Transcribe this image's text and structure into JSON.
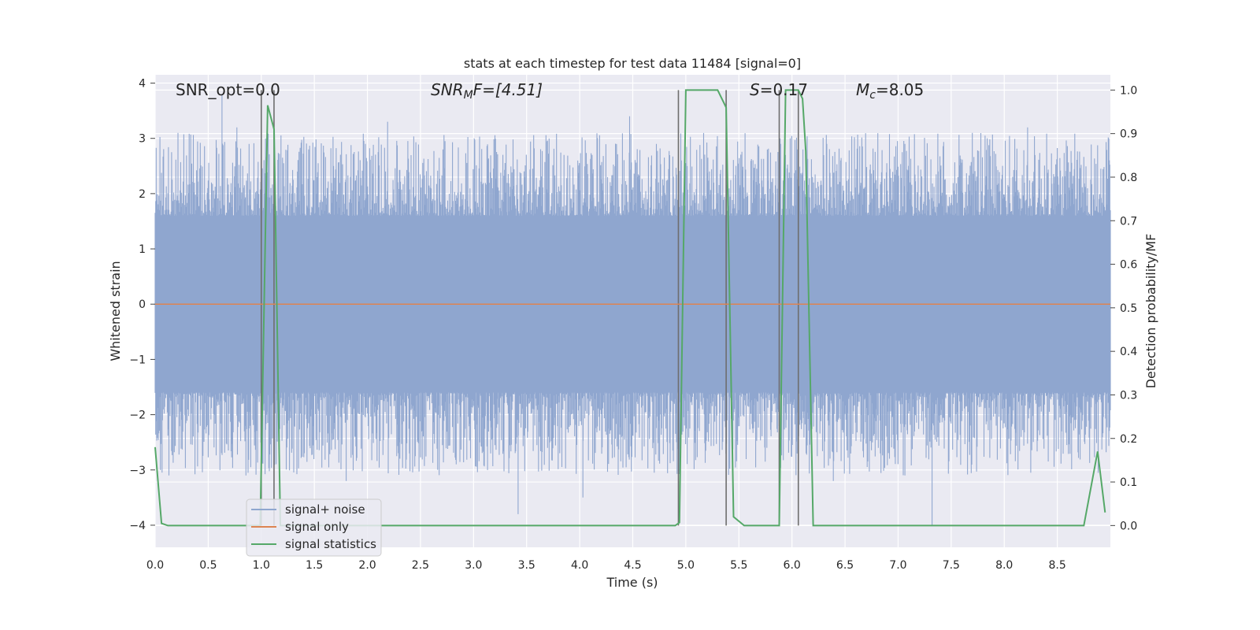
{
  "chart_data": {
    "type": "line",
    "title": "stats at each timestep for test data 11484 [signal=0]",
    "xlabel": "Time (s)",
    "ylabel": "Whitened strain",
    "y2label": "Detection probability/MF",
    "xlim": [
      0,
      9
    ],
    "ylim": [
      -4.4,
      4.15
    ],
    "y2lim": [
      -0.05,
      1.035
    ],
    "xticks": [
      "0.0",
      "0.5",
      "1.0",
      "1.5",
      "2.0",
      "2.5",
      "3.0",
      "3.5",
      "4.0",
      "4.5",
      "5.0",
      "5.5",
      "6.0",
      "6.5",
      "7.0",
      "7.5",
      "8.0",
      "8.5"
    ],
    "yticks": [
      "4",
      "3",
      "2",
      "1",
      "0",
      "−1",
      "−2",
      "−3",
      "−4"
    ],
    "y2ticks": [
      "1.0",
      "0.9",
      "0.8",
      "0.7",
      "0.6",
      "0.5",
      "0.4",
      "0.3",
      "0.2",
      "0.1",
      "0.0"
    ],
    "grid": true,
    "legend_position": "lower-left",
    "annotations": {
      "snr_opt": "SNR_opt=0.0",
      "snr_mf_main": "SNR",
      "snr_mf_sub": "M",
      "snr_mf_rest": "F=[4.51]",
      "s_italic": "S",
      "s_rest": "=0.17",
      "mc_italic": "M",
      "mc_sub": "c",
      "mc_rest": "=8.05"
    },
    "series": [
      {
        "name": "signal+ noise",
        "color": "#8fa6cf",
        "note_style": "dense noisy band",
        "core_band": [
          -1.6,
          1.6
        ],
        "peaks_upper_typical": [
          2.0,
          2.8
        ],
        "peaks_lower_typical": [
          -2.0,
          -2.8
        ],
        "extreme_points": [
          {
            "x": 0.63,
            "y": 3.8
          },
          {
            "x": 0.77,
            "y": 3.2
          },
          {
            "x": 2.19,
            "y": 3.3
          },
          {
            "x": 3.42,
            "y": -3.8
          },
          {
            "x": 4.47,
            "y": 3.4
          },
          {
            "x": 7.32,
            "y": -4.0
          },
          {
            "x": 8.22,
            "y": 3.2
          },
          {
            "x": 0.13,
            "y": -3.1
          },
          {
            "x": 1.8,
            "y": -3.2
          },
          {
            "x": 4.03,
            "y": -3.5
          },
          {
            "x": 6.39,
            "y": -3.2
          }
        ]
      },
      {
        "name": "signal only",
        "color": "#dd8452",
        "x": [
          0,
          9
        ],
        "y": [
          0,
          0
        ]
      },
      {
        "name": "signal statistics",
        "color": "#55a868",
        "axis": "right",
        "x": [
          0,
          0.06,
          0.12,
          0.99,
          1.06,
          1.12,
          1.18,
          1.5,
          2.0,
          3.0,
          4.0,
          4.9,
          4.94,
          5.0,
          5.1,
          5.3,
          5.38,
          5.45,
          5.55,
          5.88,
          5.94,
          6.0,
          6.06,
          6.1,
          6.13,
          6.2,
          7.0,
          8.0,
          8.75,
          8.88,
          8.95
        ],
        "y": [
          0.18,
          0.005,
          0.0,
          0.0,
          0.965,
          0.91,
          0.0,
          0.0,
          0.0,
          0.0,
          0.0,
          0.0,
          0.007,
          1.0,
          1.0,
          1.0,
          0.96,
          0.02,
          0.0,
          0.0,
          1.0,
          1.0,
          1.0,
          0.98,
          0.86,
          0.0,
          0.0,
          0.0,
          0.0,
          0.17,
          0.03
        ]
      }
    ],
    "vertical_markers": {
      "color": "#6e6e6e",
      "x": [
        1.0,
        1.12,
        4.93,
        5.38,
        5.88,
        6.06
      ],
      "ytop": 1.0,
      "ybottom": 0.0
    },
    "colors": {
      "plot_background": "#eaeaf2",
      "grid": "#ffffff"
    }
  }
}
